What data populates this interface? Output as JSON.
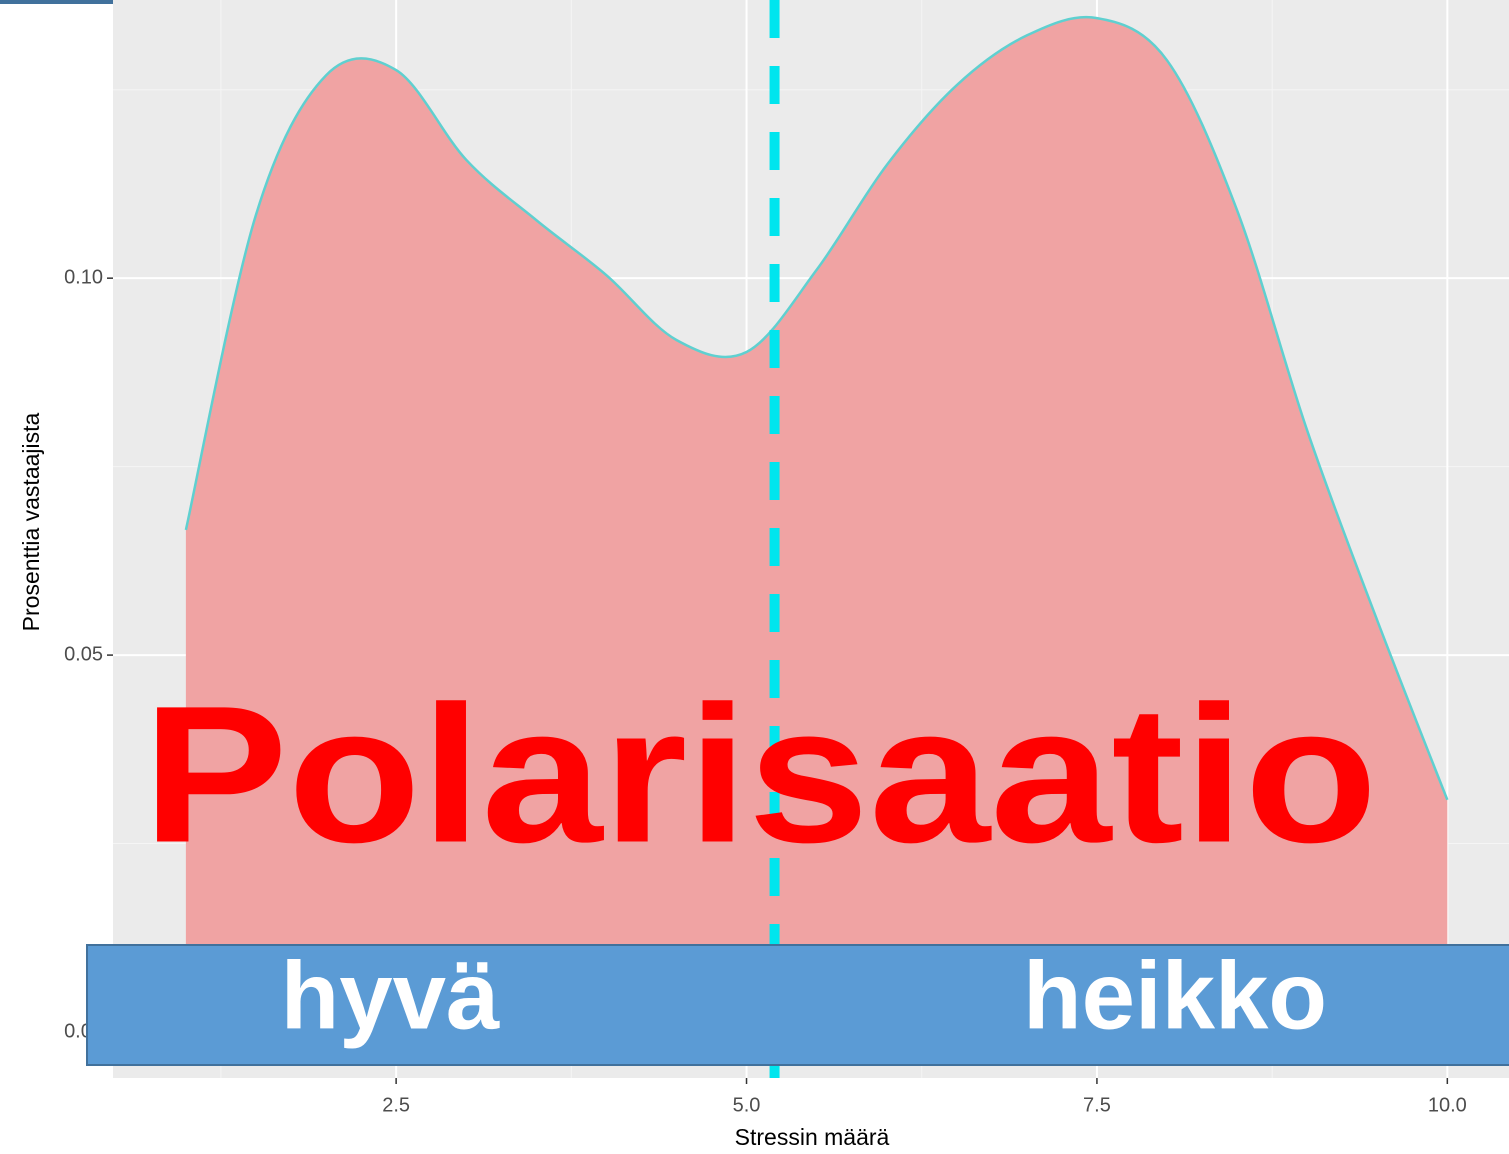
{
  "chart_data": {
    "type": "area",
    "x_label": "Stressin määrä",
    "y_label": "Prosenttia vastaajista",
    "x": [
      1.0,
      1.5,
      2.0,
      2.5,
      3.0,
      3.5,
      4.0,
      4.5,
      5.0,
      5.5,
      6.0,
      6.5,
      7.0,
      7.5,
      8.0,
      8.5,
      9.0,
      9.5,
      10.0
    ],
    "values": [
      0.0666,
      0.1084,
      0.1269,
      0.1276,
      0.1157,
      0.1077,
      0.1004,
      0.0918,
      0.0902,
      0.1011,
      0.115,
      0.1256,
      0.1322,
      0.1345,
      0.1289,
      0.109,
      0.0798,
      0.0546,
      0.0308
    ],
    "fill_color": "#f0a3a3",
    "line_color": "#5fd0d0",
    "mean_line": {
      "x": 5.2,
      "color": "#00e5ee"
    },
    "xlim": [
      0.48,
      10.44
    ],
    "ylim": [
      -0.0061,
      0.1369
    ],
    "xticks": [
      {
        "value": 2.5,
        "label": "2.5"
      },
      {
        "value": 5.0,
        "label": "5.0"
      },
      {
        "value": 7.5,
        "label": "7.5"
      },
      {
        "value": 10.0,
        "label": "10.0"
      }
    ],
    "yticks": [
      {
        "value": 0,
        "label": "0.00"
      },
      {
        "value": 0.05,
        "label": "0.05"
      },
      {
        "value": 0.1,
        "label": "0.10"
      }
    ],
    "minor_xticks": [
      1.25,
      3.75,
      6.25,
      8.75
    ],
    "minor_yticks": [
      0.025,
      0.075,
      0.125
    ],
    "grid": true,
    "annotations": {
      "title": "Polarisaatio",
      "left": "hyvä",
      "right": "heikko"
    }
  }
}
